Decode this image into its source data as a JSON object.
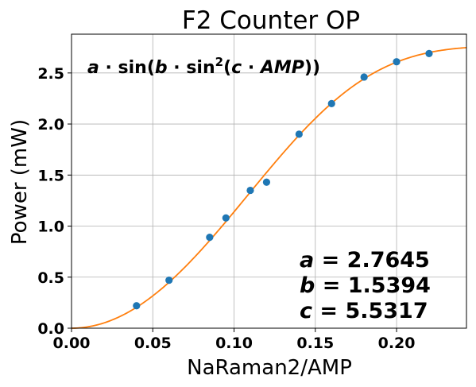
{
  "chart_data": {
    "type": "scatter",
    "title": "F2 Counter OP",
    "xlabel": "NaRaman2/AMP",
    "ylabel": "Power (mW)",
    "xlim": [
      0.0,
      0.243
    ],
    "ylim": [
      0.0,
      2.88
    ],
    "xticks": [
      "0.00",
      "0.05",
      "0.10",
      "0.15",
      "0.20"
    ],
    "xtick_values": [
      0.0,
      0.05,
      0.1,
      0.15,
      0.2
    ],
    "yticks": [
      "0.0",
      "0.5",
      "1.0",
      "1.5",
      "2.0",
      "2.5"
    ],
    "ytick_values": [
      0.0,
      0.5,
      1.0,
      1.5,
      2.0,
      2.5
    ],
    "grid": true,
    "series": [
      {
        "kind": "points",
        "color": "#1f77b4",
        "x": [
          0.04,
          0.06,
          0.085,
          0.095,
          0.11,
          0.12,
          0.14,
          0.16,
          0.18,
          0.2,
          0.22
        ],
        "y": [
          0.22,
          0.47,
          0.89,
          1.08,
          1.35,
          1.43,
          1.9,
          2.2,
          2.46,
          2.61,
          2.69
        ]
      },
      {
        "kind": "fit-curve",
        "color": "#ff7f0e",
        "formula": "a*sin(b*sin^2(c*AMP))",
        "params": {
          "a": 2.7645,
          "b": 1.5394,
          "c": 5.5317
        }
      }
    ],
    "annotations": {
      "formula": {
        "a": "a",
        "dot1": " · sin(",
        "b": "b",
        "dot2": " · sin",
        "sup": "2",
        "open": "(",
        "c": "c",
        "dot3": " · ",
        "amp": "AMP",
        "close": "))"
      },
      "params": [
        {
          "name": "a",
          "text": " = 2.7645"
        },
        {
          "name": "b",
          "text": " = 1.5394"
        },
        {
          "name": "c",
          "text": " = 5.5317"
        }
      ]
    }
  }
}
